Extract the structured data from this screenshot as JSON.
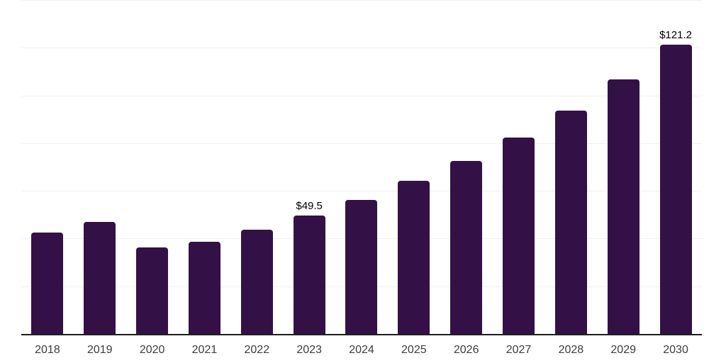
{
  "chart_data": {
    "type": "bar",
    "title": "",
    "xlabel": "",
    "ylabel": "",
    "categories": [
      "2018",
      "2019",
      "2020",
      "2021",
      "2022",
      "2023",
      "2024",
      "2025",
      "2026",
      "2027",
      "2028",
      "2029",
      "2030"
    ],
    "values": [
      42.5,
      47.1,
      36.2,
      38.5,
      43.7,
      49.5,
      56.2,
      64.2,
      72.5,
      82.3,
      93.6,
      106.7,
      121.2
    ],
    "value_labels": {
      "2023": "$49.5",
      "2030": "$121.2"
    },
    "ylim": [
      0,
      140
    ],
    "gridline_step": 20,
    "grid": "horizontal",
    "legend": "none",
    "colors": {
      "bar": "#331147",
      "gridline": "#f1f1f1",
      "axis_line": "#1f1f1f",
      "tick_label": "#3d3d3d",
      "value_label": "#000000",
      "background": "#ffffff"
    }
  }
}
